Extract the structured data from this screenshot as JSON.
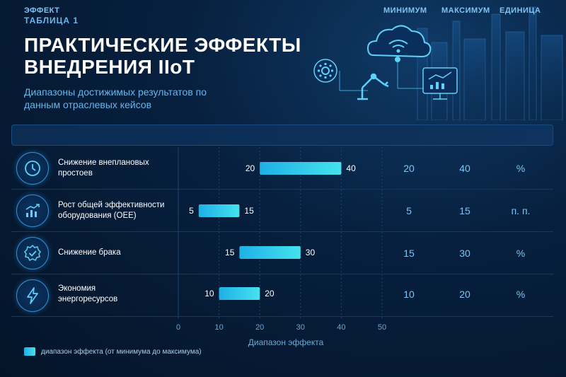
{
  "header": {
    "kicker": "ТАБЛИЦА 1",
    "title": "ПРАКТИЧЕСКИЕ ЭФФЕКТЫ ВНЕДРЕНИЯ IIoT",
    "subtitle": "Диапазоны достижимых результатов по данным отраслевых кейсов"
  },
  "table": {
    "columns": [
      "ЭФФЕКТ",
      "МИНИМУМ",
      "МАКСИМУМ",
      "ЕДИНИЦА"
    ],
    "rows": [
      {
        "effect": "Снижение внеплановых простоев",
        "min": 20,
        "max": 40,
        "unit": "%",
        "icon": "clock-icon"
      },
      {
        "effect": "Рост общей эффективности оборудования (OEE)",
        "min": 5,
        "max": 15,
        "unit": "п. п.",
        "icon": "growth-chart-icon"
      },
      {
        "effect": "Снижение брака",
        "min": 15,
        "max": 30,
        "unit": "%",
        "icon": "quality-badge-icon"
      },
      {
        "effect": "Экономия энергоресурсов",
        "min": 10,
        "max": 20,
        "unit": "%",
        "icon": "lightning-icon"
      }
    ]
  },
  "chart_data": {
    "type": "bar",
    "subtype": "range",
    "categories": [
      "Снижение внеплановых простоев",
      "Рост общей эффективности оборудования (OEE)",
      "Снижение брака",
      "Экономия энергоресурсов"
    ],
    "series": [
      {
        "name": "диапазон эффекта (от минимума до максимума)",
        "min": [
          20,
          5,
          15,
          10
        ],
        "max": [
          40,
          15,
          30,
          20
        ]
      }
    ],
    "xlabel": "Диапазон эффекта",
    "xlim": [
      0,
      50
    ],
    "xticks": [
      0,
      10,
      20,
      30,
      40,
      50
    ],
    "grid": true,
    "legend": "bottom-left",
    "colors": {
      "bar_start": "#1fb0e6",
      "bar_end": "#45e2ee",
      "grid": "#1b4470",
      "label": "#ffffff",
      "tick": "#6fa6d4"
    }
  },
  "legend": {
    "label": "диапазон эффекта (от минимума до максимума)"
  }
}
